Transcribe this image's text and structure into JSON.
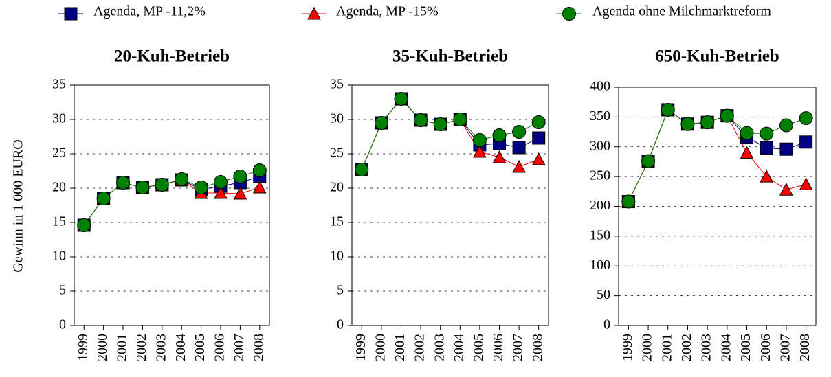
{
  "chart_data": [
    {
      "type": "line",
      "title": "20-Kuh-Betrieb",
      "y_label": "Gewinn in 1 000 EURO",
      "categories": [
        "1999",
        "2000",
        "2001",
        "2002",
        "2003",
        "2004",
        "2005",
        "2006",
        "2007",
        "2008"
      ],
      "ylim": [
        0,
        35
      ],
      "yticks": [
        0,
        5,
        10,
        15,
        20,
        25,
        30,
        35
      ],
      "grid": true,
      "series": [
        {
          "name": "Agenda, MP -11,2%",
          "color": "#000080",
          "marker": "square",
          "values": [
            14.6,
            18.5,
            20.8,
            20.1,
            20.5,
            21.2,
            19.8,
            20.3,
            20.8,
            21.7
          ]
        },
        {
          "name": "Agenda, MP -15%",
          "color": "#ff0000",
          "marker": "triangle",
          "values": [
            14.6,
            18.5,
            20.8,
            20.1,
            20.5,
            21.2,
            19.3,
            19.3,
            19.2,
            20.1
          ]
        },
        {
          "name": "Agenda ohne Milchmarktreform",
          "color": "#008000",
          "marker": "circle",
          "values": [
            14.6,
            18.5,
            20.8,
            20.1,
            20.5,
            21.3,
            20.1,
            20.9,
            21.7,
            22.6
          ]
        }
      ]
    },
    {
      "type": "line",
      "title": "35-Kuh-Betrieb",
      "categories": [
        "1999",
        "2000",
        "2001",
        "2002",
        "2003",
        "2004",
        "2005",
        "2006",
        "2007",
        "2008"
      ],
      "ylim": [
        0,
        35
      ],
      "yticks": [
        0,
        5,
        10,
        15,
        20,
        25,
        30,
        35
      ],
      "grid": true,
      "series": [
        {
          "name": "Agenda, MP -11,2%",
          "color": "#000080",
          "marker": "square",
          "values": [
            22.7,
            29.5,
            33.0,
            29.9,
            29.3,
            30.0,
            26.3,
            26.5,
            25.9,
            27.3
          ]
        },
        {
          "name": "Agenda, MP -15%",
          "color": "#ff0000",
          "marker": "triangle",
          "values": [
            22.7,
            29.5,
            33.0,
            29.9,
            29.3,
            30.0,
            25.3,
            24.5,
            23.1,
            24.2
          ]
        },
        {
          "name": "Agenda ohne Milchmarktreform",
          "color": "#008000",
          "marker": "circle",
          "values": [
            22.7,
            29.5,
            33.0,
            29.9,
            29.3,
            30.0,
            27.0,
            27.7,
            28.2,
            29.6
          ]
        }
      ]
    },
    {
      "type": "line",
      "title": "650-Kuh-Betrieb",
      "categories": [
        "1999",
        "2000",
        "2001",
        "2002",
        "2003",
        "2004",
        "2005",
        "2006",
        "2007",
        "2008"
      ],
      "ylim": [
        0,
        400
      ],
      "yticks": [
        0,
        50,
        100,
        150,
        200,
        250,
        300,
        350,
        400
      ],
      "grid": true,
      "series": [
        {
          "name": "Agenda, MP -11,2%",
          "color": "#000080",
          "marker": "square",
          "values": [
            208,
            276,
            362,
            338,
            341,
            352,
            316,
            298,
            296,
            308
          ]
        },
        {
          "name": "Agenda, MP -15%",
          "color": "#ff0000",
          "marker": "triangle",
          "values": [
            208,
            276,
            362,
            338,
            341,
            352,
            290,
            250,
            228,
            237
          ]
        },
        {
          "name": "Agenda ohne Milchmarktreform",
          "color": "#008000",
          "marker": "circle",
          "values": [
            208,
            276,
            362,
            338,
            341,
            352,
            323,
            322,
            336,
            348
          ]
        }
      ]
    }
  ]
}
